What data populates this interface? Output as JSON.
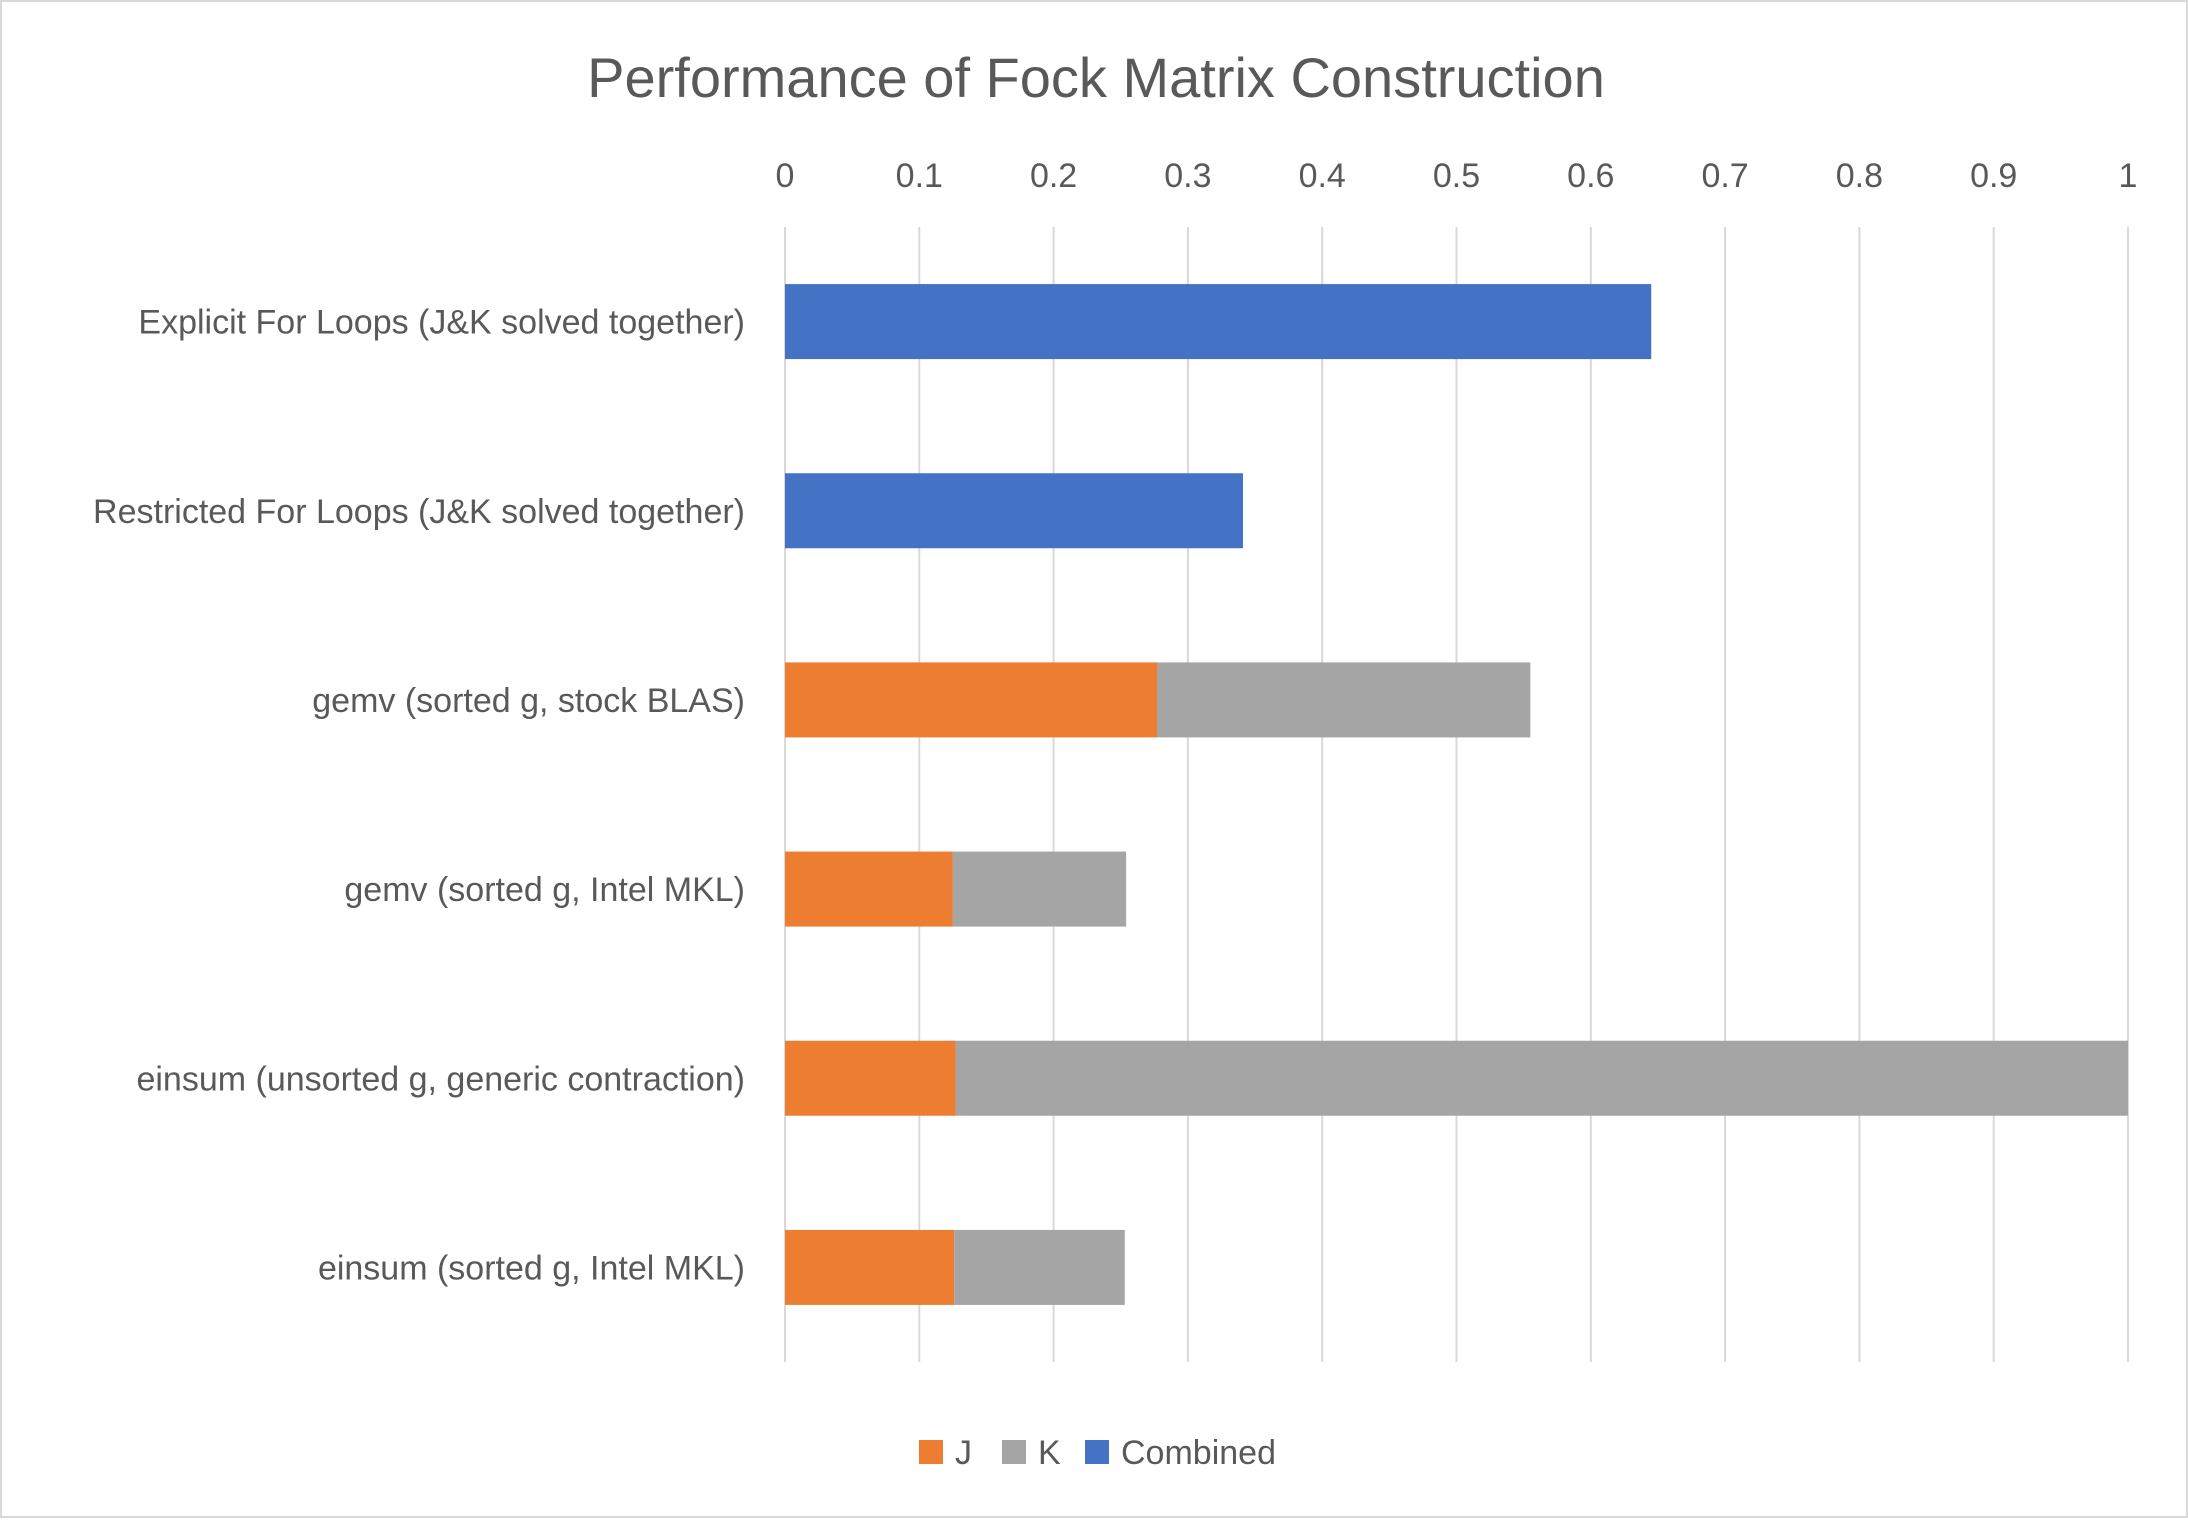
{
  "chart_data": {
    "type": "bar",
    "orientation": "horizontal",
    "stacked": true,
    "title": "Performance of Fock Matrix Construction",
    "xlabel": "",
    "ylabel": "",
    "xlim": [
      0,
      1
    ],
    "x_ticks": [
      "0",
      "0.1",
      "0.2",
      "0.3",
      "0.4",
      "0.5",
      "0.6",
      "0.7",
      "0.8",
      "0.9",
      "1"
    ],
    "x_axis_position": "top",
    "grid": "vertical",
    "legend_position": "bottom",
    "categories": [
      "Explicit For Loops (J&K solved together)",
      "Restricted For Loops (J&K solved together)",
      "gemv (sorted g, stock BLAS)",
      "gemv (sorted g, Intel MKL)",
      "einsum (unsorted g, generic contraction)",
      "einsum (sorted g, Intel MKL)"
    ],
    "series": [
      {
        "name": "J",
        "color": "#ed7d31",
        "values": [
          0,
          0,
          0.277,
          0.125,
          0.127,
          0.126
        ]
      },
      {
        "name": "K",
        "color": "#a5a5a5",
        "values": [
          0,
          0,
          0.278,
          0.129,
          0.873,
          0.127
        ]
      },
      {
        "name": "Combined",
        "color": "#4472c4",
        "values": [
          0.645,
          0.341,
          0,
          0,
          0,
          0
        ]
      }
    ]
  }
}
